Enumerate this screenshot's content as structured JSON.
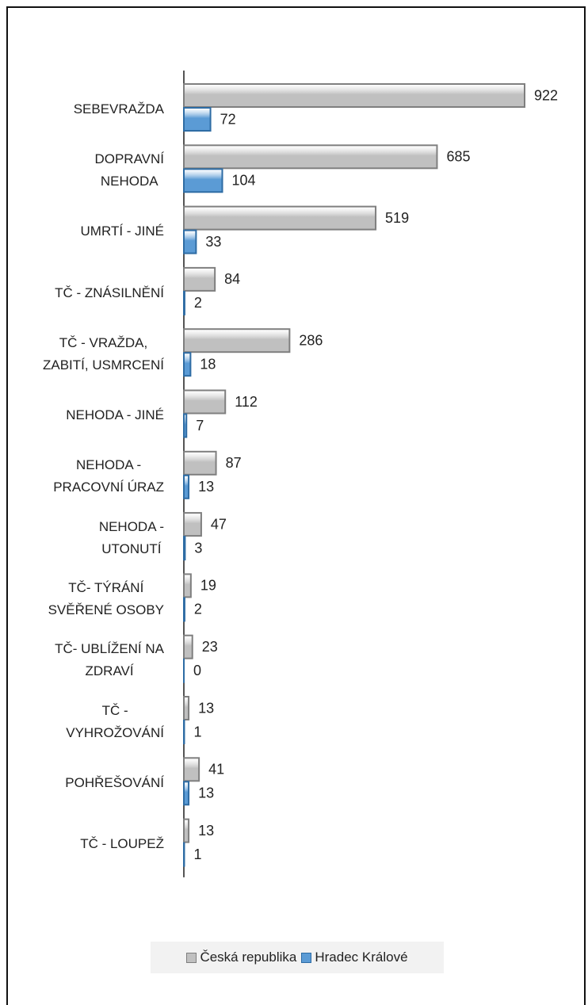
{
  "chart_data": {
    "type": "bar",
    "orientation": "horizontal",
    "categories": [
      "SEBEVRAŽDA",
      "DOPRAVNÍ\nNEHODA",
      "UMRTÍ - JINÉ",
      "TČ - ZNÁSILNĚNÍ",
      "TČ - VRAŽDA,\nZABITÍ, USMRCENÍ",
      "NEHODA - JINÉ",
      "NEHODA -\nPRACOVNÍ ÚRAZ",
      "NEHODA -\nUTONUTÍ",
      "TČ- TÝRÁNÍ\nSVĚŘENÉ OSOBY",
      "TČ- UBLÍŽENÍ NA\nZDRAVÍ",
      "TČ -\nVYHROŽOVÁNÍ",
      "POHŘEŠOVÁNÍ",
      "TČ - LOUPEŽ"
    ],
    "series": [
      {
        "name": "Česká republika",
        "color": "#c0c0c0",
        "values": [
          922,
          685,
          519,
          84,
          286,
          112,
          87,
          47,
          19,
          23,
          13,
          41,
          13
        ]
      },
      {
        "name": "Hradec Králové",
        "color": "#5b9bd5",
        "values": [
          72,
          104,
          33,
          2,
          18,
          7,
          13,
          3,
          2,
          0,
          1,
          13,
          1
        ]
      }
    ],
    "legend": "bottom"
  }
}
